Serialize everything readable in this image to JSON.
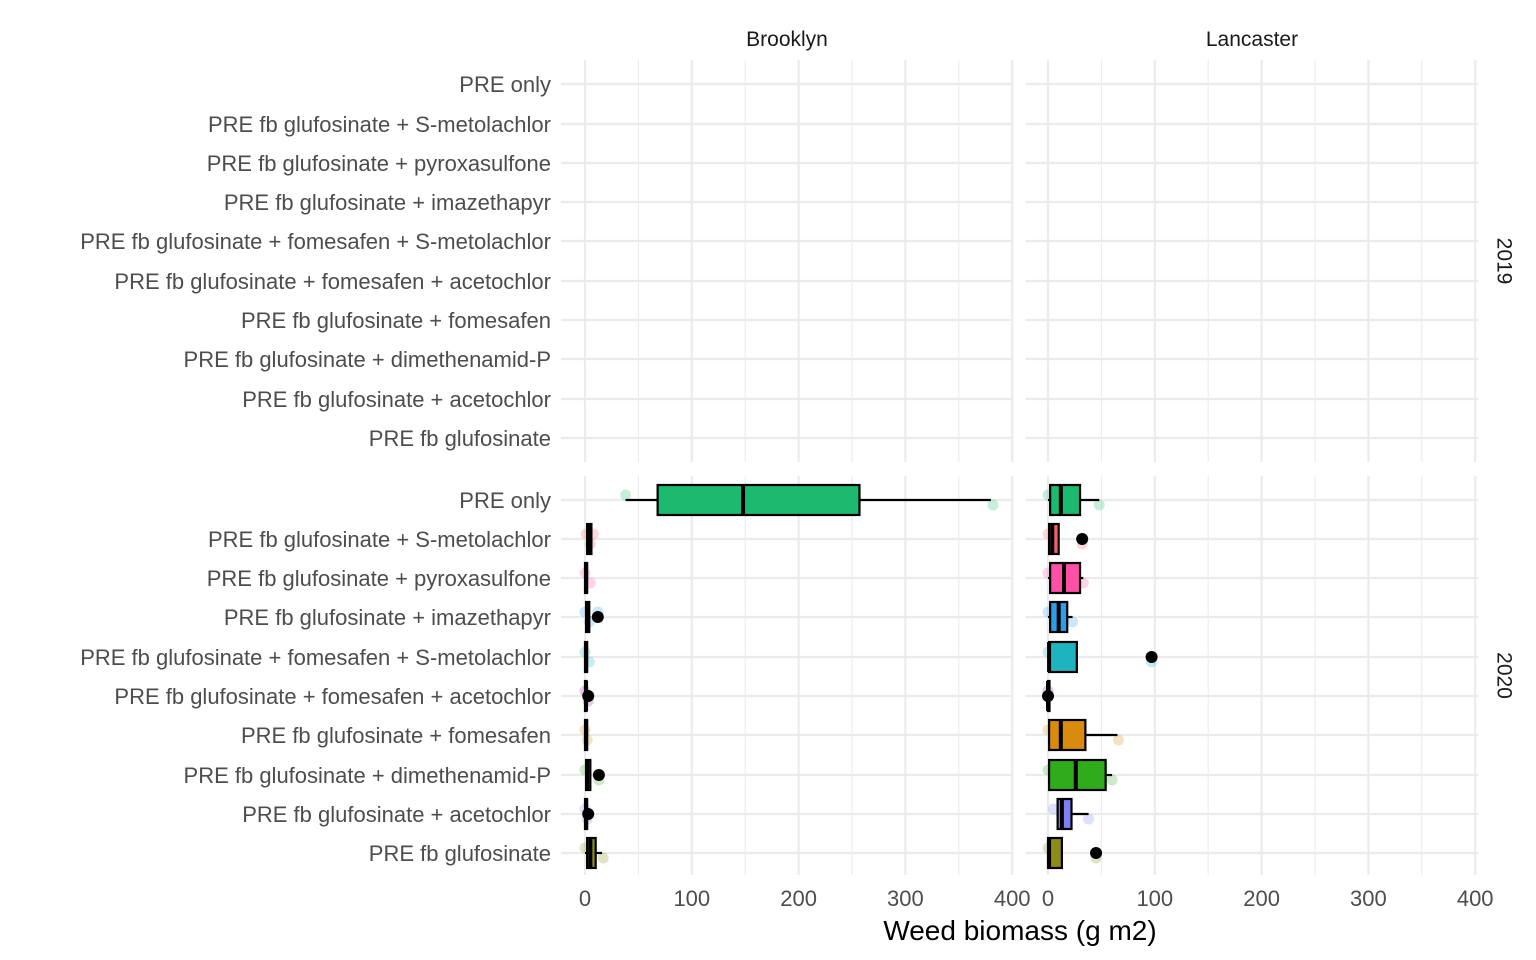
{
  "chart_data": {
    "type": "boxplot",
    "xlabel": "Weed biomass (g m2)",
    "ylabel": "",
    "xlim": [
      0,
      400
    ],
    "xticks": [
      0,
      100,
      200,
      300,
      400
    ],
    "columns": [
      "Brooklyn",
      "Lancaster"
    ],
    "rows": [
      "2019",
      "2020"
    ],
    "treatments": [
      "PRE only",
      "PRE fb glufosinate + S-metolachlor",
      "PRE fb glufosinate + pyroxasulfone",
      "PRE fb glufosinate + imazethapyr",
      "PRE fb glufosinate + fomesafen + S-metolachlor",
      "PRE fb glufosinate + fomesafen + acetochlor",
      "PRE fb glufosinate + fomesafen",
      "PRE fb glufosinate + dimethenamid-P",
      "PRE fb glufosinate + acetochlor",
      "PRE fb glufosinate"
    ],
    "colors": {
      "PRE only": "#1bba6e",
      "PRE fb glufosinate + S-metolachlor": "#f0626b",
      "PRE fb glufosinate + pyroxasulfone": "#ff4fa6",
      "PRE fb glufosinate + imazethapyr": "#2e9ee8",
      "PRE fb glufosinate + fomesafen + S-metolachlor": "#1eb4bf",
      "PRE fb glufosinate + fomesafen + acetochlor": "#8b2e95",
      "PRE fb glufosinate + fomesafen": "#d98b0d",
      "PRE fb glufosinate + dimethenamid-P": "#2fab1c",
      "PRE fb glufosinate + acetochlor": "#7f7ff5",
      "PRE fb glufosinate": "#8c8c1a"
    },
    "panels": [
      {
        "column": "Brooklyn",
        "row": "2019",
        "boxes": []
      },
      {
        "column": "Lancaster",
        "row": "2019",
        "boxes": []
      },
      {
        "column": "Brooklyn",
        "row": "2020",
        "boxes": [
          {
            "treatment": "PRE only",
            "whisker_low": 38,
            "q1": 68,
            "median": 148,
            "q3": 257,
            "whisker_high": 380,
            "outliers": [],
            "points": [
              38,
              382
            ]
          },
          {
            "treatment": "PRE fb glufosinate + S-metolachlor",
            "whisker_low": 1,
            "q1": 2,
            "median": 4,
            "q3": 6,
            "whisker_high": 7,
            "outliers": [],
            "points": [
              1,
              5,
              8
            ]
          },
          {
            "treatment": "PRE fb glufosinate + pyroxasulfone",
            "whisker_low": 0,
            "q1": 0,
            "median": 1,
            "q3": 2,
            "whisker_high": 3,
            "outliers": [],
            "points": [
              0,
              5
            ]
          },
          {
            "treatment": "PRE fb glufosinate + imazethapyr",
            "whisker_low": 0,
            "q1": 1,
            "median": 2,
            "q3": 4,
            "whisker_high": 5,
            "outliers": [
              12
            ],
            "points": [
              0,
              4,
              12
            ]
          },
          {
            "treatment": "PRE fb glufosinate + fomesafen + S-metolachlor",
            "whisker_low": 0,
            "q1": 0,
            "median": 1,
            "q3": 2,
            "whisker_high": 3,
            "outliers": [],
            "points": [
              0,
              4
            ]
          },
          {
            "treatment": "PRE fb glufosinate + fomesafen + acetochlor",
            "whisker_low": 0,
            "q1": 0,
            "median": 1,
            "q3": 1,
            "whisker_high": 2,
            "outliers": [
              3
            ],
            "points": [
              0,
              3
            ]
          },
          {
            "treatment": "PRE fb glufosinate + fomesafen",
            "whisker_low": 0,
            "q1": 0,
            "median": 1,
            "q3": 2,
            "whisker_high": 3,
            "outliers": [],
            "points": [
              0,
              2
            ]
          },
          {
            "treatment": "PRE fb glufosinate + dimethenamid-P",
            "whisker_low": 0,
            "q1": 1,
            "median": 2,
            "q3": 5,
            "whisker_high": 6,
            "outliers": [
              13
            ],
            "points": [
              0,
              13
            ]
          },
          {
            "treatment": "PRE fb glufosinate + acetochlor",
            "whisker_low": 0,
            "q1": 0,
            "median": 1,
            "q3": 2,
            "whisker_high": 3,
            "outliers": [
              3
            ],
            "points": [
              0,
              2
            ]
          },
          {
            "treatment": "PRE fb glufosinate",
            "whisker_low": 0,
            "q1": 2,
            "median": 5,
            "q3": 10,
            "whisker_high": 16,
            "outliers": [],
            "points": [
              0,
              17
            ]
          }
        ]
      },
      {
        "column": "Lancaster",
        "row": "2020",
        "boxes": [
          {
            "treatment": "PRE only",
            "whisker_low": 0,
            "q1": 2,
            "median": 12,
            "q3": 30,
            "whisker_high": 48,
            "outliers": [],
            "points": [
              0,
              48
            ]
          },
          {
            "treatment": "PRE fb glufosinate + S-metolachlor",
            "whisker_low": 0,
            "q1": 1,
            "median": 4,
            "q3": 10,
            "whisker_high": 10,
            "outliers": [
              32
            ],
            "points": [
              0,
              32
            ]
          },
          {
            "treatment": "PRE fb glufosinate + pyroxasulfone",
            "whisker_low": 0,
            "q1": 2,
            "median": 15,
            "q3": 30,
            "whisker_high": 33,
            "outliers": [],
            "points": [
              0,
              33
            ]
          },
          {
            "treatment": "PRE fb glufosinate + imazethapyr",
            "whisker_low": 0,
            "q1": 2,
            "median": 10,
            "q3": 18,
            "whisker_high": 23,
            "outliers": [],
            "points": [
              0,
              23
            ]
          },
          {
            "treatment": "PRE fb glufosinate + fomesafen + S-metolachlor",
            "whisker_low": 0,
            "q1": 1,
            "median": 1,
            "q3": 27,
            "whisker_high": 27,
            "outliers": [
              97
            ],
            "points": [
              0,
              97
            ]
          },
          {
            "treatment": "PRE fb glufosinate + fomesafen + acetochlor",
            "whisker_low": 0,
            "q1": 0,
            "median": 0,
            "q3": 0,
            "whisker_high": 0,
            "outliers": [
              0
            ],
            "points": [
              0
            ]
          },
          {
            "treatment": "PRE fb glufosinate + fomesafen",
            "whisker_low": 0,
            "q1": 1,
            "median": 12,
            "q3": 35,
            "whisker_high": 65,
            "outliers": [],
            "points": [
              0,
              66
            ]
          },
          {
            "treatment": "PRE fb glufosinate + dimethenamid-P",
            "whisker_low": 0,
            "q1": 1,
            "median": 26,
            "q3": 54,
            "whisker_high": 60,
            "outliers": [],
            "points": [
              0,
              60
            ]
          },
          {
            "treatment": "PRE fb glufosinate + acetochlor",
            "whisker_low": 8,
            "q1": 9,
            "median": 13,
            "q3": 22,
            "whisker_high": 38,
            "outliers": [],
            "points": [
              5,
              38
            ]
          },
          {
            "treatment": "PRE fb glufosinate",
            "whisker_low": 0,
            "q1": 0,
            "median": 1,
            "q3": 13,
            "whisker_high": 13,
            "outliers": [
              45
            ],
            "points": [
              0,
              45
            ]
          }
        ]
      }
    ]
  }
}
